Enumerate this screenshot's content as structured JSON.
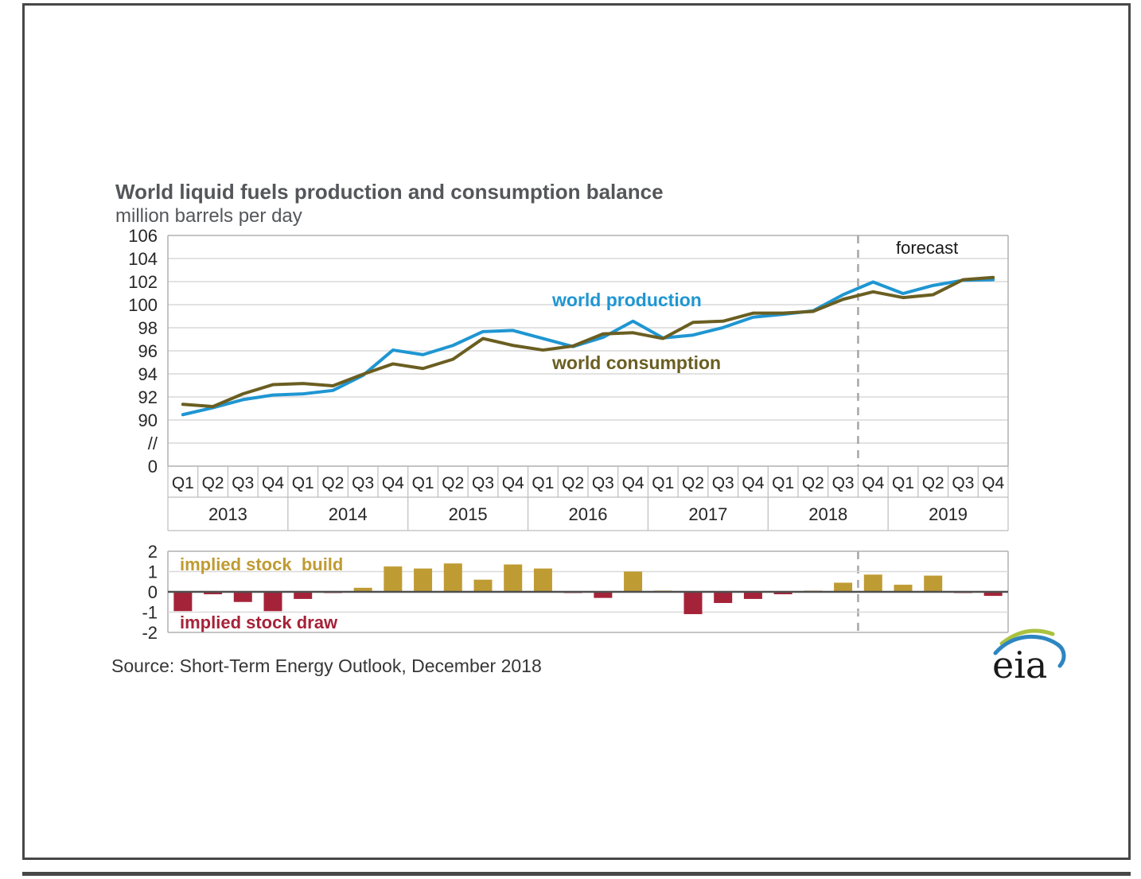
{
  "page": {
    "forecast_label": "forecast"
  },
  "chart_data": [
    {
      "type": "line",
      "title": "World liquid fuels production and consumption balance",
      "subtitle": "million barrels per day",
      "years": [
        "2013",
        "2014",
        "2015",
        "2016",
        "2017",
        "2018",
        "2019"
      ],
      "quarter_labels": [
        "Q1",
        "Q2",
        "Q3",
        "Q4"
      ],
      "y_ticks": [
        "106",
        "104",
        "102",
        "100",
        "98",
        "96",
        "94",
        "92",
        "90",
        "//",
        "0"
      ],
      "ylim_display": [
        90,
        106
      ],
      "axis_break": true,
      "grid": true,
      "forecast_divider_after": "2018 Q3",
      "series": [
        {
          "name": "world production",
          "color": "#1f96d2",
          "values": [
            90.5,
            91.1,
            91.8,
            92.2,
            92.3,
            92.6,
            93.9,
            96.1,
            95.7,
            96.5,
            97.7,
            97.8,
            97.1,
            96.4,
            97.2,
            98.6,
            97.15,
            97.4,
            98.05,
            98.95,
            99.2,
            99.5,
            100.9,
            102.0,
            101.0,
            101.7,
            102.15,
            102.2
          ]
        },
        {
          "name": "world consumption",
          "color": "#6a5e21",
          "values": [
            91.4,
            91.2,
            92.3,
            93.1,
            93.2,
            93.0,
            94.0,
            94.9,
            94.5,
            95.3,
            97.1,
            96.5,
            96.1,
            96.45,
            97.5,
            97.6,
            97.1,
            98.5,
            98.6,
            99.3,
            99.3,
            99.45,
            100.5,
            101.15,
            100.65,
            100.9,
            102.2,
            102.4
          ]
        }
      ]
    },
    {
      "type": "bar",
      "name": "implied stock change",
      "y_ticks": [
        "2",
        "1",
        "0",
        "-1",
        "-2"
      ],
      "ylim": [
        -2,
        2
      ],
      "positive_label": "implied stock  build",
      "negative_label": "implied stock draw",
      "positive_color": "#bf9b33",
      "negative_color": "#a52339",
      "values": [
        -0.95,
        -0.12,
        -0.5,
        -0.95,
        -0.35,
        -0.06,
        0.2,
        1.25,
        1.15,
        1.4,
        0.6,
        1.35,
        1.15,
        -0.06,
        -0.3,
        1.0,
        0.06,
        -1.1,
        -0.55,
        -0.35,
        -0.12,
        0.06,
        0.45,
        0.85,
        0.35,
        0.8,
        -0.06,
        -0.2
      ]
    }
  ],
  "footer": {
    "source": "Source: Short-Term Energy Outlook, December 2018",
    "logo_text": "eia"
  }
}
